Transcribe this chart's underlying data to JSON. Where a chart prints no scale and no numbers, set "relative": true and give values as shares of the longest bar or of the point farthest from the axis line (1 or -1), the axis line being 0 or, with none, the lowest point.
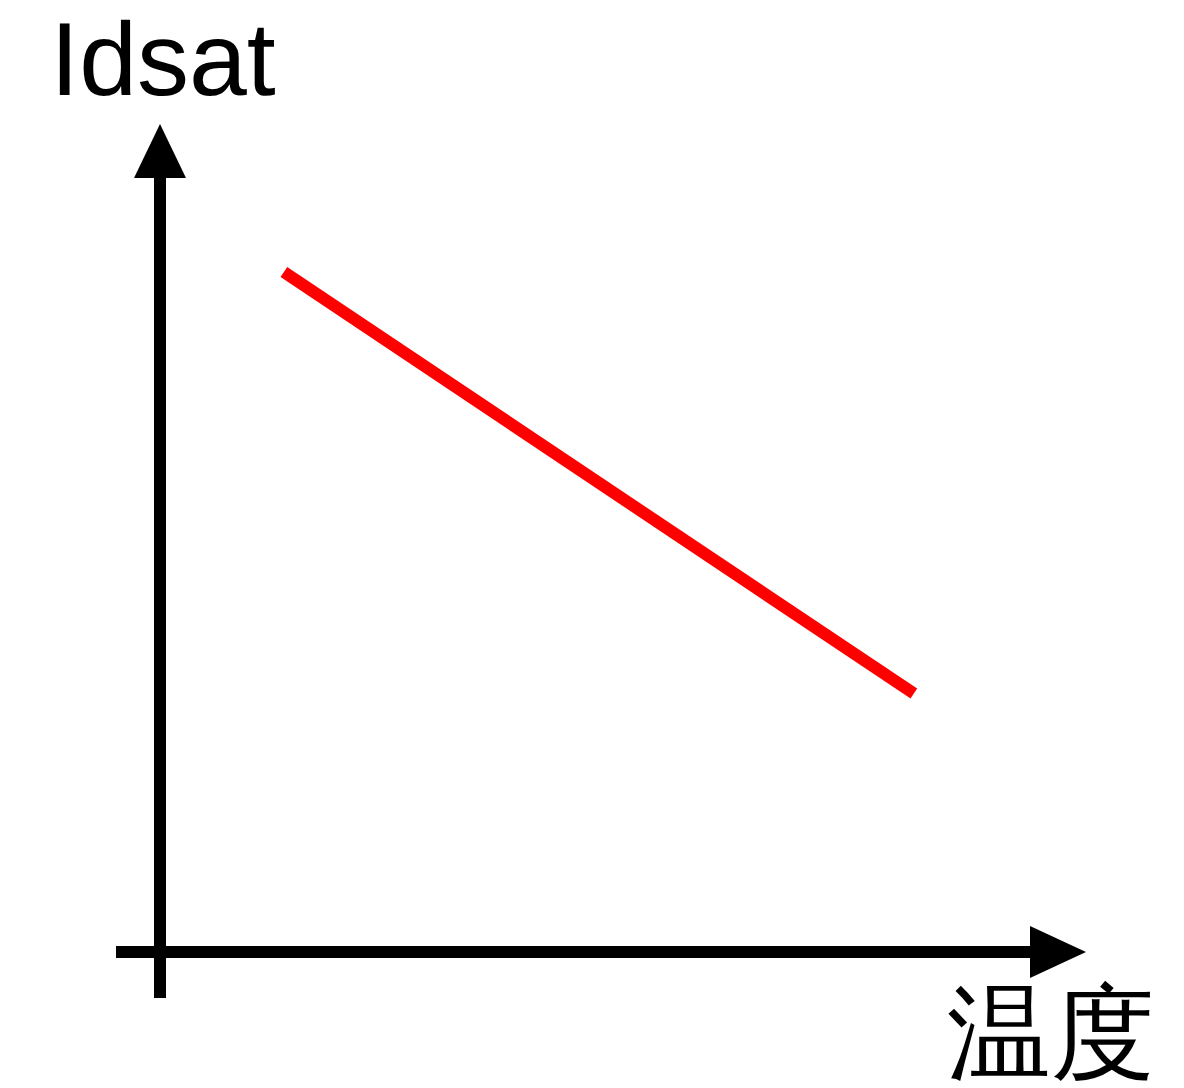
{
  "chart_data": {
    "type": "line",
    "xlabel": "温度",
    "ylabel": "Idsat",
    "categories": [
      null,
      null
    ],
    "relative": true,
    "values": [
      1,
      0.38
    ],
    "color": "#ff0000",
    "line_style": "solid"
  }
}
